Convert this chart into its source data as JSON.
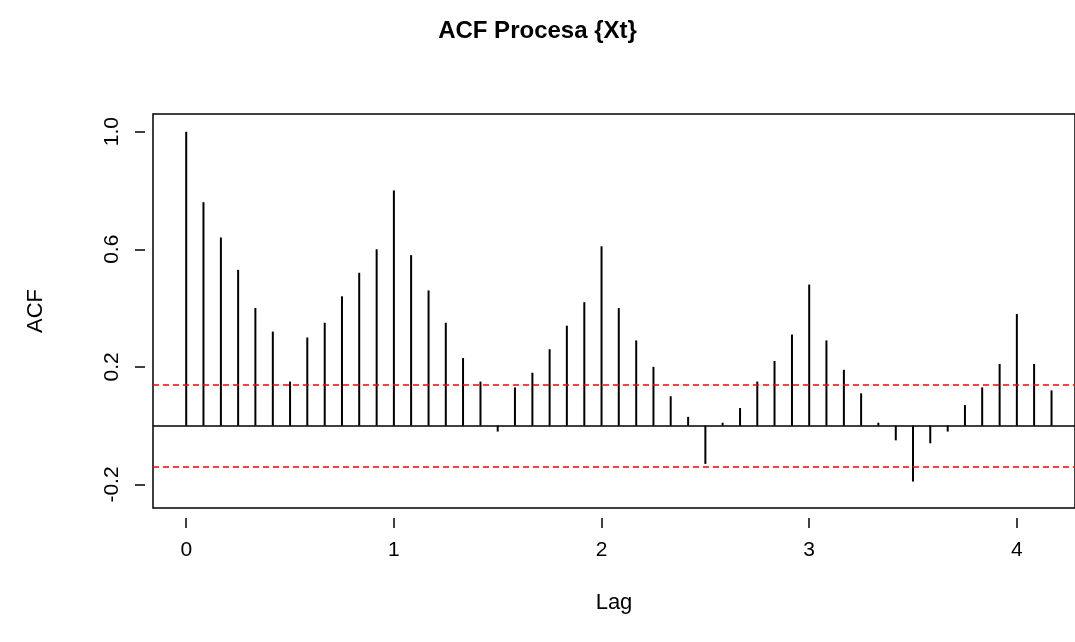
{
  "chart_data": {
    "type": "bar",
    "title": "ACF Procesa {Xt}",
    "xlabel": "Lag",
    "ylabel": "ACF",
    "x": [
      0,
      0.083,
      0.167,
      0.25,
      0.333,
      0.417,
      0.5,
      0.583,
      0.667,
      0.75,
      0.833,
      0.917,
      1,
      1.083,
      1.167,
      1.25,
      1.333,
      1.417,
      1.5,
      1.583,
      1.667,
      1.75,
      1.833,
      1.917,
      2,
      2.083,
      2.167,
      2.25,
      2.333,
      2.417,
      2.5,
      2.583,
      2.667,
      2.75,
      2.833,
      2.917,
      3,
      3.083,
      3.167,
      3.25,
      3.333,
      3.417,
      3.5,
      3.583,
      3.667,
      3.75,
      3.833,
      3.917,
      4,
      4.083,
      4.167
    ],
    "values": [
      1.0,
      0.76,
      0.64,
      0.53,
      0.4,
      0.32,
      0.15,
      0.3,
      0.35,
      0.44,
      0.52,
      0.6,
      0.8,
      0.58,
      0.46,
      0.35,
      0.23,
      0.15,
      -0.02,
      0.13,
      0.18,
      0.26,
      0.34,
      0.42,
      0.61,
      0.4,
      0.29,
      0.2,
      0.1,
      0.03,
      -0.13,
      0.01,
      0.06,
      0.15,
      0.22,
      0.31,
      0.48,
      0.29,
      0.19,
      0.11,
      0.01,
      -0.05,
      -0.19,
      -0.06,
      -0.02,
      0.07,
      0.13,
      0.21,
      0.38,
      0.21,
      0.12
    ],
    "color": "#000000",
    "xlim": [
      -0.16,
      4.28
    ],
    "ylim": [
      -0.28,
      1.06
    ],
    "xticks": [
      0,
      1,
      2,
      3,
      4
    ],
    "yticks": [
      -0.2,
      0.2,
      0.6,
      {
        "value": 1,
        "label": "1.0"
      }
    ],
    "ref_lines": [
      {
        "axis": "y",
        "value": 0,
        "color": "#000000",
        "line_style": "solid"
      },
      {
        "axis": "y",
        "value": 0.14,
        "color": "#ff0000",
        "line_style": "dashed"
      },
      {
        "axis": "y",
        "value": -0.14,
        "color": "#ff0000",
        "line_style": "dashed"
      }
    ],
    "grid": false
  }
}
